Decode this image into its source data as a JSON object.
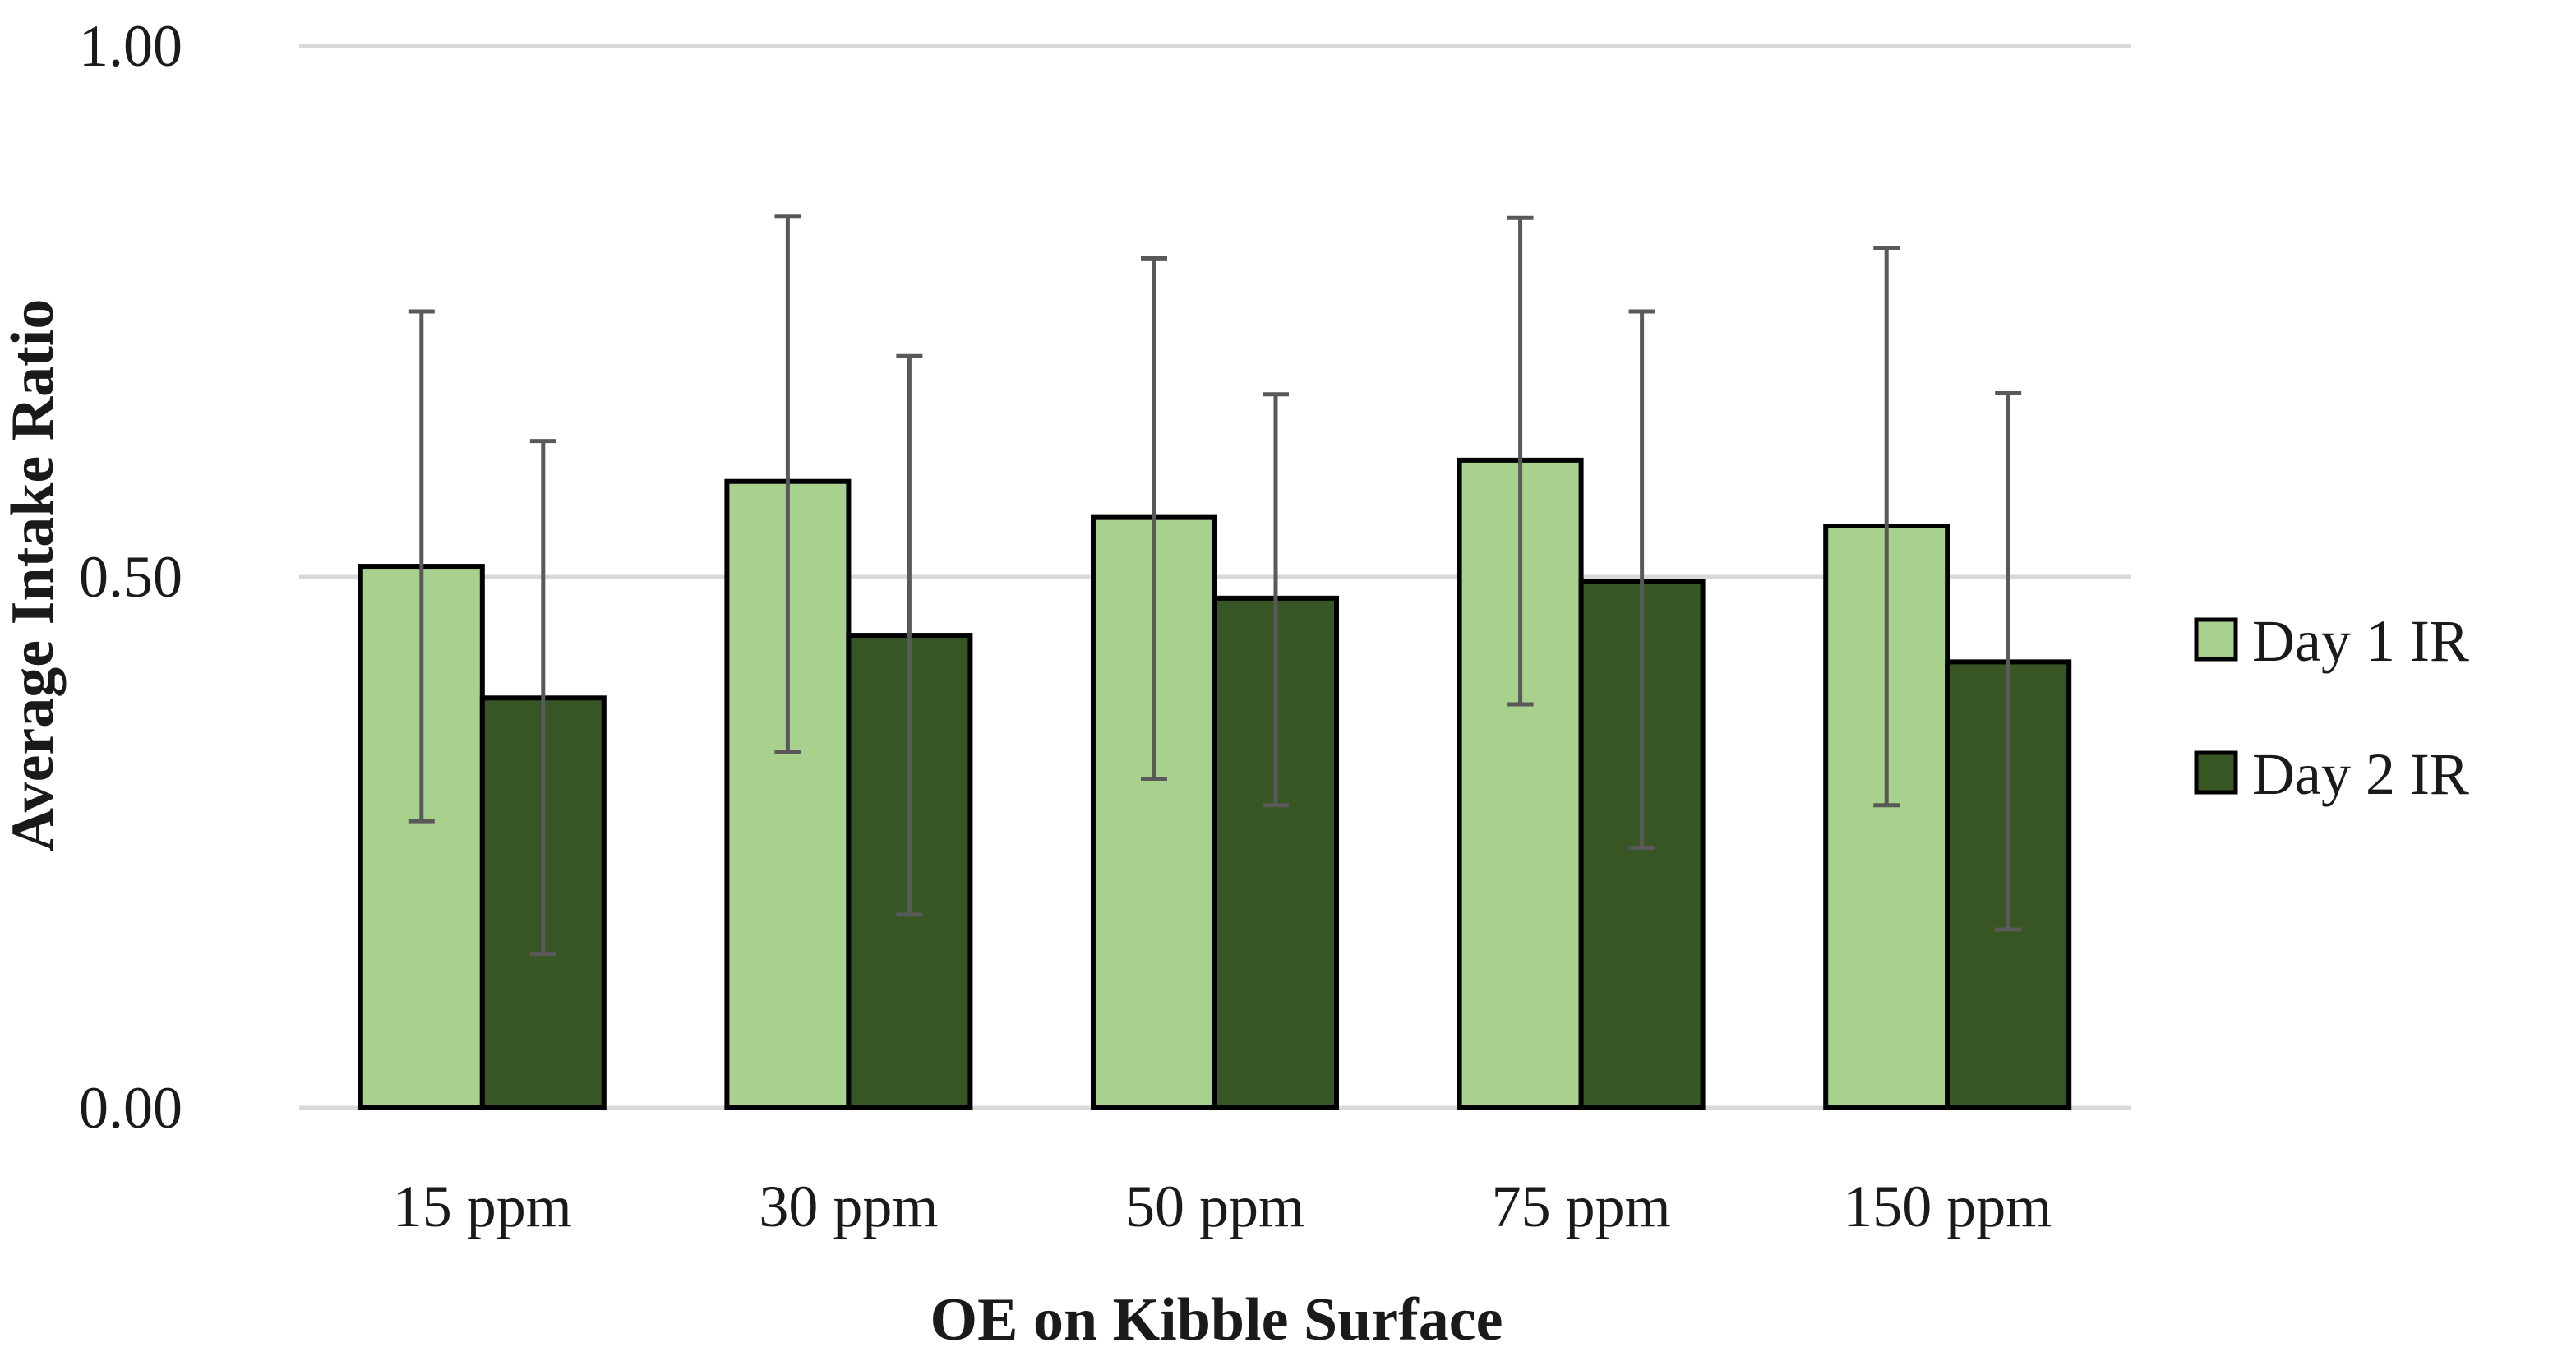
{
  "chart_data": {
    "type": "bar",
    "title": "",
    "xlabel": "OE on Kibble Surface",
    "ylabel": "Average Intake Ratio",
    "ylim": [
      0,
      1
    ],
    "yticks": [
      0,
      0.5,
      1
    ],
    "ytick_labels": [
      "0.00",
      "0.50",
      "1.00"
    ],
    "grid": true,
    "legend_position": "right",
    "categories": [
      "15 ppm",
      "30 ppm",
      "50 ppm",
      "75 ppm",
      "150 ppm"
    ],
    "series": [
      {
        "name": "Day 1 IR",
        "color": "#a9d18e",
        "values": [
          0.51,
          0.59,
          0.556,
          0.61,
          0.548
        ],
        "error_low": [
          0.27,
          0.335,
          0.31,
          0.38,
          0.285
        ],
        "error_high": [
          0.75,
          0.84,
          0.8,
          0.838,
          0.81
        ]
      },
      {
        "name": "Day 2 IR",
        "color": "#375623",
        "values": [
          0.386,
          0.445,
          0.48,
          0.496,
          0.42
        ],
        "error_low": [
          0.145,
          0.182,
          0.285,
          0.245,
          0.168
        ],
        "error_high": [
          0.628,
          0.708,
          0.672,
          0.75,
          0.673
        ]
      }
    ]
  }
}
